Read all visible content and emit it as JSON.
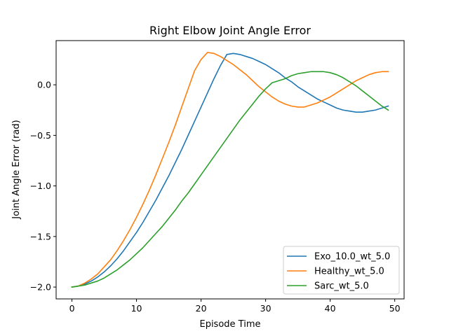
{
  "chart_data": {
    "type": "line",
    "title": "Right Elbow Joint Angle Error",
    "xlabel": "Episode Time",
    "ylabel": "Joint Angle Error (rad)",
    "xlim": [
      -2.45,
      51.45
    ],
    "ylim": [
      -2.117,
      0.437
    ],
    "xticks": [
      0,
      10,
      20,
      30,
      40,
      50
    ],
    "yticks": [
      -2.0,
      -1.5,
      -1.0,
      -0.5,
      0.0
    ],
    "xtick_labels": [
      "0",
      "10",
      "20",
      "30",
      "40",
      "50"
    ],
    "ytick_labels": [
      "−2.0",
      "−1.5",
      "−1.0",
      "−0.5",
      "0.0"
    ],
    "grid": false,
    "legend_position": "lower right",
    "x": [
      0,
      1,
      2,
      3,
      4,
      5,
      6,
      7,
      8,
      9,
      10,
      11,
      12,
      13,
      14,
      15,
      16,
      17,
      18,
      19,
      20,
      21,
      22,
      23,
      24,
      25,
      26,
      27,
      28,
      29,
      30,
      31,
      32,
      33,
      34,
      35,
      36,
      37,
      38,
      39,
      40,
      41,
      42,
      43,
      44,
      45,
      46,
      47,
      48,
      49
    ],
    "series": [
      {
        "name": "Exo_10.0_wt_5.0",
        "color": "#1f77b4",
        "values": [
          -2.0,
          -1.99,
          -1.97,
          -1.94,
          -1.9,
          -1.85,
          -1.79,
          -1.72,
          -1.64,
          -1.55,
          -1.46,
          -1.36,
          -1.25,
          -1.14,
          -1.02,
          -0.9,
          -0.77,
          -0.64,
          -0.5,
          -0.36,
          -0.22,
          -0.08,
          0.06,
          0.19,
          0.3,
          0.31,
          0.3,
          0.28,
          0.26,
          0.23,
          0.2,
          0.16,
          0.12,
          0.07,
          0.03,
          -0.02,
          -0.06,
          -0.1,
          -0.14,
          -0.17,
          -0.2,
          -0.23,
          -0.25,
          -0.26,
          -0.27,
          -0.27,
          -0.26,
          -0.25,
          -0.23,
          -0.21
        ]
      },
      {
        "name": "Healthy_wt_5.0",
        "color": "#ff7f0e",
        "values": [
          -2.0,
          -1.99,
          -1.96,
          -1.92,
          -1.87,
          -1.8,
          -1.73,
          -1.64,
          -1.54,
          -1.43,
          -1.31,
          -1.18,
          -1.04,
          -0.89,
          -0.73,
          -0.57,
          -0.4,
          -0.22,
          -0.04,
          0.14,
          0.25,
          0.32,
          0.31,
          0.28,
          0.24,
          0.2,
          0.15,
          0.1,
          0.04,
          -0.02,
          -0.07,
          -0.12,
          -0.16,
          -0.19,
          -0.21,
          -0.22,
          -0.22,
          -0.2,
          -0.18,
          -0.15,
          -0.12,
          -0.08,
          -0.04,
          0.0,
          0.04,
          0.07,
          0.1,
          0.12,
          0.13,
          0.13
        ]
      },
      {
        "name": "Sarc_wt_5.0",
        "color": "#2ca02c",
        "values": [
          -2.0,
          -1.99,
          -1.98,
          -1.96,
          -1.94,
          -1.91,
          -1.87,
          -1.83,
          -1.78,
          -1.73,
          -1.67,
          -1.61,
          -1.54,
          -1.47,
          -1.4,
          -1.32,
          -1.24,
          -1.15,
          -1.07,
          -0.98,
          -0.89,
          -0.8,
          -0.71,
          -0.62,
          -0.53,
          -0.44,
          -0.35,
          -0.27,
          -0.19,
          -0.11,
          -0.04,
          0.02,
          0.04,
          0.06,
          0.09,
          0.11,
          0.12,
          0.13,
          0.13,
          0.13,
          0.12,
          0.1,
          0.07,
          0.03,
          -0.01,
          -0.06,
          -0.11,
          -0.16,
          -0.21,
          -0.25
        ]
      }
    ]
  }
}
